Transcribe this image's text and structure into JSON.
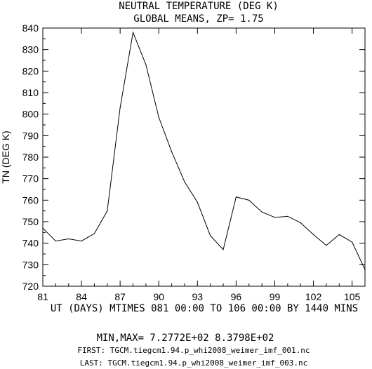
{
  "chart_data": {
    "type": "line",
    "title": "NEUTRAL TEMPERATURE (DEG K)",
    "subtitle": "GLOBAL MEANS, ZP=  1.75",
    "xlabel": "UT (DAYS) MTIMES 081 00:00 TO 106 00:00 BY 1440 MINS",
    "ylabel": "TN (DEG K)",
    "xlim": [
      81,
      106
    ],
    "ylim": [
      720,
      840
    ],
    "x_ticks": [
      "81",
      "84",
      "87",
      "90",
      "93",
      "96",
      "99",
      "102",
      "105"
    ],
    "y_ticks": [
      "720",
      "730",
      "740",
      "750",
      "760",
      "770",
      "780",
      "790",
      "800",
      "810",
      "820",
      "830",
      "840"
    ],
    "grid": false,
    "series": [
      {
        "x": [
          81,
          82,
          83,
          84,
          85,
          86,
          87,
          88,
          89,
          90,
          91,
          92,
          93,
          94,
          95,
          96,
          97,
          98,
          99,
          100,
          101,
          102,
          103,
          104,
          105,
          106
        ],
        "values": [
          747.0,
          741.0,
          742.0,
          741.0,
          744.5,
          755.0,
          803.0,
          837.98,
          823.0,
          798.5,
          782.5,
          768.5,
          759.0,
          743.5,
          737.0,
          761.5,
          760.0,
          754.5,
          752.0,
          752.5,
          749.5,
          744.0,
          739.0,
          744.0,
          740.5,
          727.72
        ]
      }
    ]
  },
  "footer": {
    "minmax": "MIN,MAX=  7.2772E+02  8.3798E+02",
    "first": "FIRST: TGCM.tiegcm1.94.p_whi2008_weimer_imf_001.nc",
    "last": "LAST:  TGCM.tiegcm1.94.p_whi2008_weimer_imf_003.nc"
  }
}
